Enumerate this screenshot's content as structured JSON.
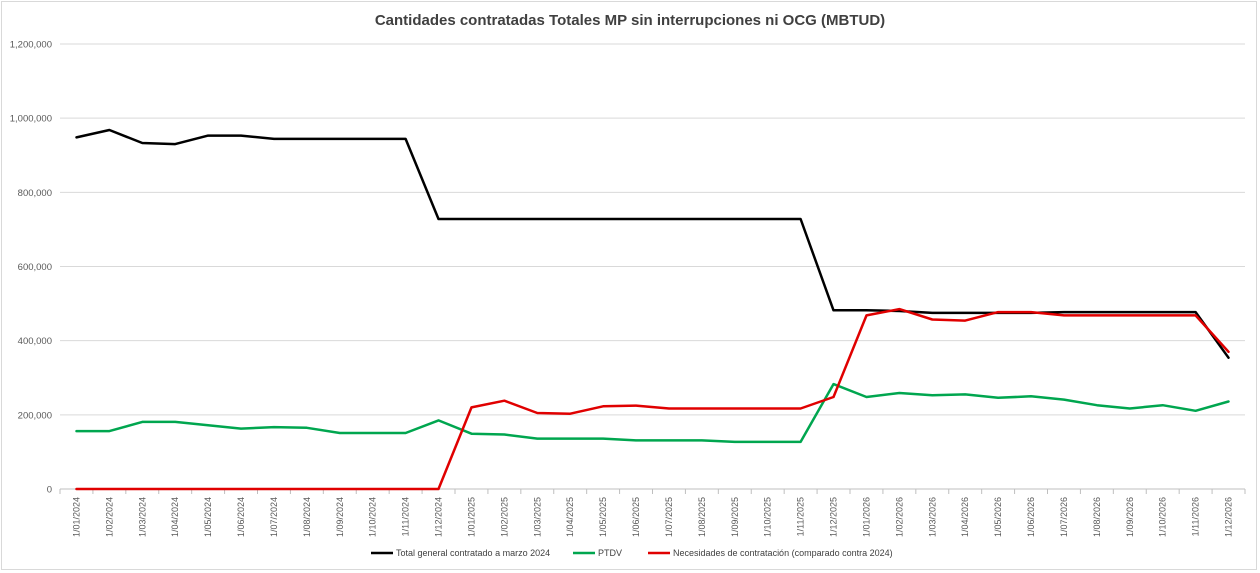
{
  "chart_data": {
    "type": "line",
    "title": "Cantidades contratadas Totales MP sin interrupciones ni OCG (MBTUD)",
    "xlabel": "",
    "ylabel": "",
    "ylim": [
      0,
      1200000
    ],
    "yticks": [
      "0",
      "200,000",
      "400,000",
      "600,000",
      "800,000",
      "1,000,000",
      "1,200,000"
    ],
    "ytick_values": [
      0,
      200000,
      400000,
      600000,
      800000,
      1000000,
      1200000
    ],
    "grid": "horizontal",
    "legend_position": "bottom",
    "categories": [
      "1/01/2024",
      "1/02/2024",
      "1/03/2024",
      "1/04/2024",
      "1/05/2024",
      "1/06/2024",
      "1/07/2024",
      "1/08/2024",
      "1/09/2024",
      "1/10/2024",
      "1/11/2024",
      "1/12/2024",
      "1/01/2025",
      "1/02/2025",
      "1/03/2025",
      "1/04/2025",
      "1/05/2025",
      "1/06/2025",
      "1/07/2025",
      "1/08/2025",
      "1/09/2025",
      "1/10/2025",
      "1/11/2025",
      "1/12/2025",
      "1/01/2026",
      "1/02/2026",
      "1/03/2026",
      "1/04/2026",
      "1/05/2026",
      "1/06/2026",
      "1/07/2026",
      "1/08/2026",
      "1/09/2026",
      "1/10/2026",
      "1/11/2026",
      "1/12/2026"
    ],
    "series": [
      {
        "name": "Total general contratado a marzo 2024",
        "color": "#000000",
        "values": [
          948000,
          968000,
          933000,
          930000,
          953000,
          953000,
          944000,
          944000,
          944000,
          944000,
          944000,
          728000,
          728000,
          728000,
          728000,
          728000,
          728000,
          728000,
          728000,
          728000,
          728000,
          728000,
          728000,
          482000,
          482000,
          480000,
          475000,
          475000,
          475000,
          475000,
          477000,
          477000,
          477000,
          477000,
          477000,
          354000
        ]
      },
      {
        "name": "PTDV",
        "color": "#00a64f",
        "values": [
          156000,
          156000,
          181000,
          181000,
          172000,
          163000,
          167000,
          165000,
          151000,
          151000,
          151000,
          185000,
          149000,
          147000,
          136000,
          136000,
          136000,
          131000,
          131000,
          131000,
          127000,
          127000,
          127000,
          283000,
          248000,
          259000,
          253000,
          255000,
          246000,
          250000,
          241000,
          226000,
          217000,
          226000,
          211000,
          236000
        ]
      },
      {
        "name": "Necesidades de contratación (comparado contra 2024)",
        "color": "#e00000",
        "values": [
          0,
          0,
          0,
          0,
          0,
          0,
          0,
          0,
          0,
          0,
          0,
          0,
          220000,
          238000,
          205000,
          203000,
          223000,
          225000,
          217000,
          217000,
          217000,
          217000,
          217000,
          248000,
          468000,
          485000,
          457000,
          454000,
          477000,
          477000,
          468000,
          468000,
          468000,
          468000,
          468000,
          370000
        ]
      }
    ]
  }
}
